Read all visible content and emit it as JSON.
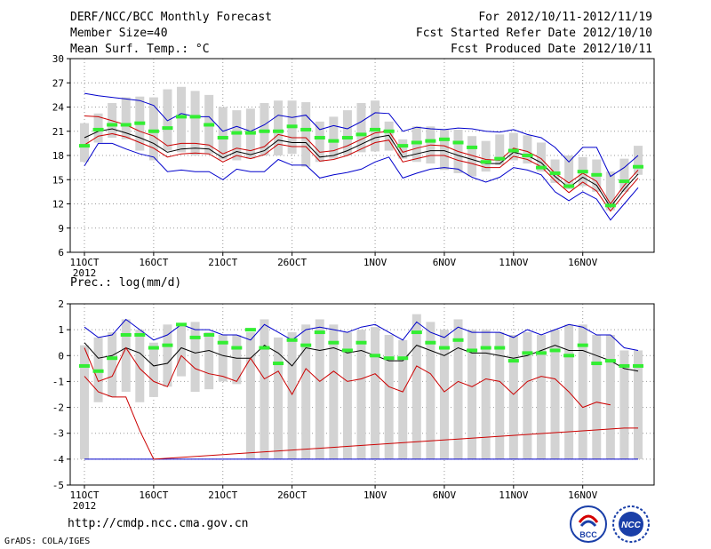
{
  "header": {
    "title": "DERF/NCC/BCC Monthly Forecast",
    "member": "Member Size=40",
    "variable": "Mean Surf. Temp.: °C",
    "period": "For 2012/10/11-2012/11/19",
    "refer": "Fcst Started Refer Date 2012/10/10",
    "produced": "Fcst Produced Date 2012/10/11"
  },
  "footer": {
    "url": "http://cmdp.ncc.cma.gov.cn",
    "credit": "GrADS: COLA/IGES",
    "logo_bcc": "BCC",
    "logo_ncc": "NCC"
  },
  "colors": {
    "upper": "#0000cc",
    "lower": "#cc0000",
    "mean": "#000000",
    "green": "#33ee33",
    "bar": "#d3d3d3",
    "grid": "#999999"
  },
  "chart_data": [
    {
      "type": "line",
      "title": "Mean Surf. Temp.: °C",
      "xlabel": "",
      "ylabel": "°C",
      "ylim": [
        6,
        30
      ],
      "yticks": [
        6,
        9,
        12,
        15,
        18,
        21,
        24,
        27,
        30
      ],
      "xticks": [
        {
          "day": 0,
          "label": "11OCT",
          "sub": "2012"
        },
        {
          "day": 5,
          "label": "16OCT"
        },
        {
          "day": 10,
          "label": "21OCT"
        },
        {
          "day": 15,
          "label": "26OCT"
        },
        {
          "day": 21,
          "label": "1NOV"
        },
        {
          "day": 26,
          "label": "6NOV"
        },
        {
          "day": 31,
          "label": "11NOV"
        },
        {
          "day": 36,
          "label": "16NOV"
        }
      ],
      "days": 40,
      "series": [
        {
          "name": "upper",
          "values": [
            25.7,
            25.4,
            25.2,
            25.0,
            24.8,
            24.2,
            22.3,
            23.2,
            22.8,
            22.8,
            21.0,
            21.6,
            21.0,
            21.8,
            23.0,
            22.7,
            23.0,
            21.2,
            21.7,
            21.3,
            22.2,
            23.3,
            23.2,
            21.0,
            21.5,
            21.3,
            21.2,
            21.4,
            21.3,
            21.0,
            20.9,
            21.2,
            20.6,
            20.2,
            19.0,
            17.2,
            19.0,
            19.0,
            15.4,
            16.5,
            18.0
          ]
        },
        {
          "name": "lower",
          "values": [
            16.7,
            19.5,
            19.5,
            18.8,
            18.2,
            17.8,
            16.0,
            16.2,
            16.0,
            16.0,
            15.0,
            16.3,
            16.0,
            16.0,
            17.5,
            16.8,
            16.8,
            15.2,
            15.6,
            15.9,
            16.3,
            17.2,
            17.8,
            15.2,
            15.8,
            16.3,
            16.5,
            16.3,
            15.3,
            14.7,
            15.3,
            16.5,
            16.2,
            15.6,
            13.5,
            12.4,
            13.5,
            12.6,
            10.0,
            12.0,
            14.0
          ]
        },
        {
          "name": "mean",
          "values": [
            20.2,
            21.0,
            21.3,
            20.8,
            20.2,
            19.5,
            18.4,
            18.8,
            18.9,
            18.8,
            17.7,
            18.5,
            18.1,
            18.6,
            19.9,
            19.6,
            19.6,
            17.8,
            18.0,
            18.6,
            19.4,
            20.2,
            20.5,
            17.8,
            18.2,
            18.6,
            18.6,
            18.0,
            17.5,
            17.0,
            17.0,
            18.4,
            18.0,
            17.1,
            15.4,
            14.0,
            15.3,
            14.3,
            11.6,
            13.8,
            15.7
          ]
        },
        {
          "name": "red_high",
          "values": [
            22.9,
            22.8,
            22.3,
            21.8,
            21.0,
            20.4,
            19.2,
            19.5,
            19.5,
            19.3,
            18.2,
            18.9,
            18.6,
            19.1,
            20.6,
            20.2,
            20.2,
            18.4,
            18.6,
            19.2,
            20.0,
            20.8,
            21.0,
            18.4,
            18.9,
            19.3,
            19.2,
            18.5,
            18.0,
            17.5,
            17.4,
            18.9,
            18.5,
            17.6,
            15.8,
            14.6,
            15.8,
            14.8,
            12.0,
            14.3,
            16.2
          ]
        },
        {
          "name": "red_low",
          "values": [
            19.3,
            20.4,
            20.7,
            20.3,
            19.6,
            18.9,
            17.8,
            18.2,
            18.3,
            18.2,
            17.2,
            18.0,
            17.6,
            18.1,
            19.4,
            19.1,
            19.1,
            17.3,
            17.5,
            18.0,
            18.8,
            19.6,
            19.9,
            17.2,
            17.6,
            18.0,
            18.0,
            17.4,
            17.0,
            16.5,
            16.5,
            17.9,
            17.5,
            16.6,
            14.9,
            13.4,
            14.7,
            13.6,
            11.1,
            13.2,
            15.2
          ]
        }
      ],
      "green": [
        19.2,
        21.2,
        21.8,
        21.8,
        22.0,
        21.0,
        21.4,
        22.8,
        22.8,
        21.8,
        20.2,
        20.8,
        20.8,
        21.0,
        21.0,
        21.6,
        21.2,
        20.2,
        19.8,
        20.2,
        20.6,
        21.2,
        21.0,
        19.2,
        19.6,
        19.8,
        20.0,
        19.6,
        19.0,
        17.2,
        17.6,
        18.6,
        18.0,
        16.5,
        15.8,
        14.2,
        16.0,
        15.6,
        11.8,
        14.8,
        16.6
      ],
      "bars": [
        [
          17.2,
          22.0
        ],
        [
          19.6,
          23.2
        ],
        [
          20.2,
          24.5
        ],
        [
          20.0,
          25.2
        ],
        [
          18.6,
          25.3
        ],
        [
          17.4,
          25.2
        ],
        [
          18.6,
          26.2
        ],
        [
          18.4,
          26.5
        ],
        [
          18.0,
          26.0
        ],
        [
          18.2,
          25.5
        ],
        [
          17.5,
          24.0
        ],
        [
          17.4,
          23.6
        ],
        [
          17.6,
          23.8
        ],
        [
          18.0,
          24.5
        ],
        [
          18.0,
          24.8
        ],
        [
          18.2,
          24.8
        ],
        [
          16.6,
          24.6
        ],
        [
          17.2,
          22.2
        ],
        [
          17.6,
          22.8
        ],
        [
          18.0,
          23.6
        ],
        [
          18.4,
          24.5
        ],
        [
          18.5,
          24.8
        ],
        [
          18.6,
          22.2
        ],
        [
          17.6,
          20.0
        ],
        [
          17.2,
          21.6
        ],
        [
          17.0,
          21.6
        ],
        [
          16.2,
          21.2
        ],
        [
          15.8,
          21.2
        ],
        [
          15.4,
          20.4
        ],
        [
          16.0,
          19.8
        ],
        [
          16.8,
          20.6
        ],
        [
          17.4,
          20.8
        ],
        [
          17.0,
          20.5
        ],
        [
          16.0,
          19.6
        ],
        [
          14.6,
          17.5
        ],
        [
          13.8,
          18.0
        ],
        [
          14.2,
          17.8
        ],
        [
          13.5,
          17.5
        ],
        [
          11.2,
          16.0
        ],
        [
          13.5,
          17.6
        ],
        [
          15.6,
          19.2
        ]
      ]
    },
    {
      "type": "line",
      "title": "Prec.: log(mm/d)",
      "xlabel": "",
      "ylabel": "log(mm/d)",
      "ylim": [
        -5,
        2
      ],
      "yticks": [
        -5,
        -4,
        -3,
        -2,
        -1,
        0,
        1,
        2
      ],
      "xticks": [
        {
          "day": 0,
          "label": "11OCT",
          "sub": "2012"
        },
        {
          "day": 5,
          "label": "16OCT"
        },
        {
          "day": 10,
          "label": "21OCT"
        },
        {
          "day": 15,
          "label": "26OCT"
        },
        {
          "day": 21,
          "label": "1NOV"
        },
        {
          "day": 26,
          "label": "6NOV"
        },
        {
          "day": 31,
          "label": "11NOV"
        },
        {
          "day": 36,
          "label": "16NOV"
        }
      ],
      "days": 40,
      "series": [
        {
          "name": "upper",
          "values": [
            1.1,
            0.7,
            0.8,
            1.4,
            1.0,
            0.6,
            0.8,
            1.2,
            1.0,
            1.0,
            0.8,
            0.8,
            0.6,
            1.2,
            0.9,
            0.6,
            1.0,
            1.1,
            1.0,
            0.9,
            1.1,
            1.2,
            0.9,
            0.6,
            1.3,
            0.9,
            0.7,
            1.1,
            0.9,
            0.9,
            0.9,
            0.7,
            1.0,
            0.8,
            1.0,
            1.2,
            1.1,
            0.8,
            0.8,
            0.3,
            0.2
          ]
        },
        {
          "name": "mean",
          "values": [
            0.5,
            -0.1,
            0.0,
            0.3,
            0.1,
            -0.4,
            -0.3,
            0.3,
            0.1,
            0.2,
            0.0,
            -0.1,
            -0.1,
            0.4,
            0.1,
            -0.4,
            0.3,
            0.2,
            0.3,
            0.1,
            0.2,
            0.0,
            -0.2,
            -0.2,
            0.4,
            0.2,
            0.0,
            0.3,
            0.1,
            0.1,
            0.0,
            -0.1,
            0.0,
            0.2,
            0.4,
            0.2,
            0.2,
            0.0,
            -0.2,
            -0.5,
            -0.6
          ]
        },
        {
          "name": "lower",
          "values": [
            -0.8,
            -1.4,
            -1.6,
            -1.6,
            -2.9,
            -4.0,
            null,
            null,
            null,
            null,
            null,
            null,
            null,
            null,
            null,
            null,
            null,
            null,
            null,
            null,
            null,
            null,
            null,
            null,
            null,
            null,
            null,
            null,
            null,
            null,
            null,
            null,
            null,
            null,
            null,
            null,
            null,
            null,
            null,
            -2.8,
            -2.8
          ]
        },
        {
          "name": "red_mid",
          "values": [
            0.3,
            -1.0,
            -0.8,
            0.3,
            -0.5,
            -1.0,
            -1.2,
            0.0,
            -0.5,
            -0.7,
            -0.8,
            -1.0,
            -0.1,
            -0.9,
            -0.6,
            -1.5,
            -0.5,
            -1.0,
            -0.6,
            -1.0,
            -0.9,
            -0.7,
            -1.2,
            -1.4,
            -0.4,
            -0.7,
            -1.4,
            -1.0,
            -1.2,
            -0.9,
            -1.0,
            -1.5,
            -1.0,
            -0.8,
            -0.9,
            -1.4,
            -2.0,
            -1.8,
            -1.9,
            null,
            null
          ]
        }
      ],
      "floor": -4,
      "green": [
        -0.4,
        -0.6,
        -0.1,
        0.8,
        0.8,
        0.3,
        0.4,
        1.2,
        0.7,
        0.8,
        0.5,
        0.3,
        1.0,
        0.3,
        -0.3,
        0.6,
        0.4,
        0.9,
        0.5,
        0.2,
        0.5,
        0.0,
        -0.1,
        -0.1,
        0.9,
        0.5,
        0.3,
        0.6,
        0.2,
        0.3,
        0.3,
        -0.2,
        0.1,
        0.1,
        0.2,
        0.0,
        0.4,
        -0.3,
        -0.2,
        -0.4,
        -0.4
      ],
      "bars": [
        [
          -4.0,
          0.4
        ],
        [
          -1.8,
          0.7
        ],
        [
          -1.6,
          0.9
        ],
        [
          -1.4,
          1.4
        ],
        [
          -1.8,
          1.0
        ],
        [
          -1.6,
          0.5
        ],
        [
          -1.2,
          1.2
        ],
        [
          -0.8,
          1.2
        ],
        [
          -1.4,
          1.3
        ],
        [
          -1.3,
          0.9
        ],
        [
          -1.0,
          0.8
        ],
        [
          -1.1,
          0.8
        ],
        [
          -4.0,
          0.9
        ],
        [
          -4.0,
          1.4
        ],
        [
          -4.0,
          0.7
        ],
        [
          -4.0,
          0.9
        ],
        [
          -4.0,
          1.2
        ],
        [
          -4.0,
          1.4
        ],
        [
          -4.0,
          1.2
        ],
        [
          -4.0,
          0.9
        ],
        [
          -4.0,
          1.0
        ],
        [
          -4.0,
          1.1
        ],
        [
          -4.0,
          0.8
        ],
        [
          -4.0,
          0.6
        ],
        [
          -4.0,
          1.6
        ],
        [
          -4.0,
          1.3
        ],
        [
          -4.0,
          1.0
        ],
        [
          -4.0,
          1.4
        ],
        [
          -4.0,
          1.0
        ],
        [
          -4.0,
          1.0
        ],
        [
          -4.0,
          0.9
        ],
        [
          -4.0,
          0.8
        ],
        [
          -4.0,
          0.9
        ],
        [
          -4.0,
          0.8
        ],
        [
          -4.0,
          1.0
        ],
        [
          -4.0,
          1.2
        ],
        [
          -4.0,
          1.2
        ],
        [
          -4.0,
          0.8
        ],
        [
          -4.0,
          0.8
        ],
        [
          -4.0,
          0.2
        ],
        [
          -4.0,
          0.2
        ]
      ]
    }
  ]
}
